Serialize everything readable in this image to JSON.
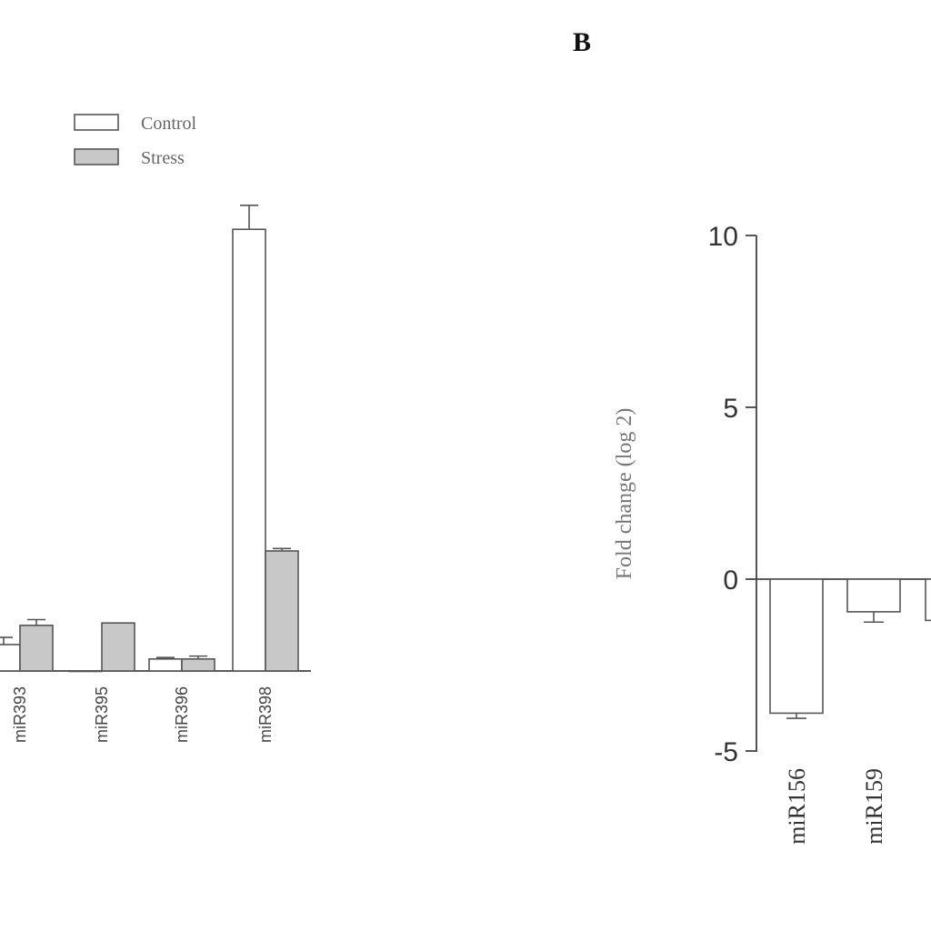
{
  "panel_b_letter": "B",
  "chart_data": [
    {
      "type": "bar",
      "panel": "A",
      "categories": [
        "miR393",
        "miR395",
        "miR396",
        "miR398"
      ],
      "series": [
        {
          "name": "Control",
          "values": [
            0.55,
            0.0,
            0.25,
            9.2
          ],
          "errors": [
            0.15,
            0.0,
            0.03,
            0.5
          ],
          "color": "#ffffff"
        },
        {
          "name": "Stress",
          "values": [
            0.95,
            1.0,
            0.25,
            2.5
          ],
          "errors": [
            0.12,
            0.0,
            0.06,
            0.05
          ],
          "color": "#c8c8c8"
        }
      ],
      "legend": {
        "position": "top-right",
        "entries": [
          "Control",
          "Stress"
        ]
      },
      "ylim": [
        0,
        10.5
      ],
      "xlabel": "",
      "ylabel": ""
    },
    {
      "type": "bar",
      "panel": "B",
      "categories": [
        "miR156",
        "miR159",
        ""
      ],
      "series": [
        {
          "name": "",
          "values": [
            -3.9,
            -0.95,
            -1.2
          ],
          "errors": [
            0.15,
            0.3,
            0.0
          ],
          "color": "#ffffff"
        }
      ],
      "ylabel": "Fold change (log 2)",
      "ylim": [
        -5,
        10
      ],
      "yticks": [
        "10",
        "5",
        "0",
        "-5"
      ],
      "xlabel": ""
    }
  ]
}
